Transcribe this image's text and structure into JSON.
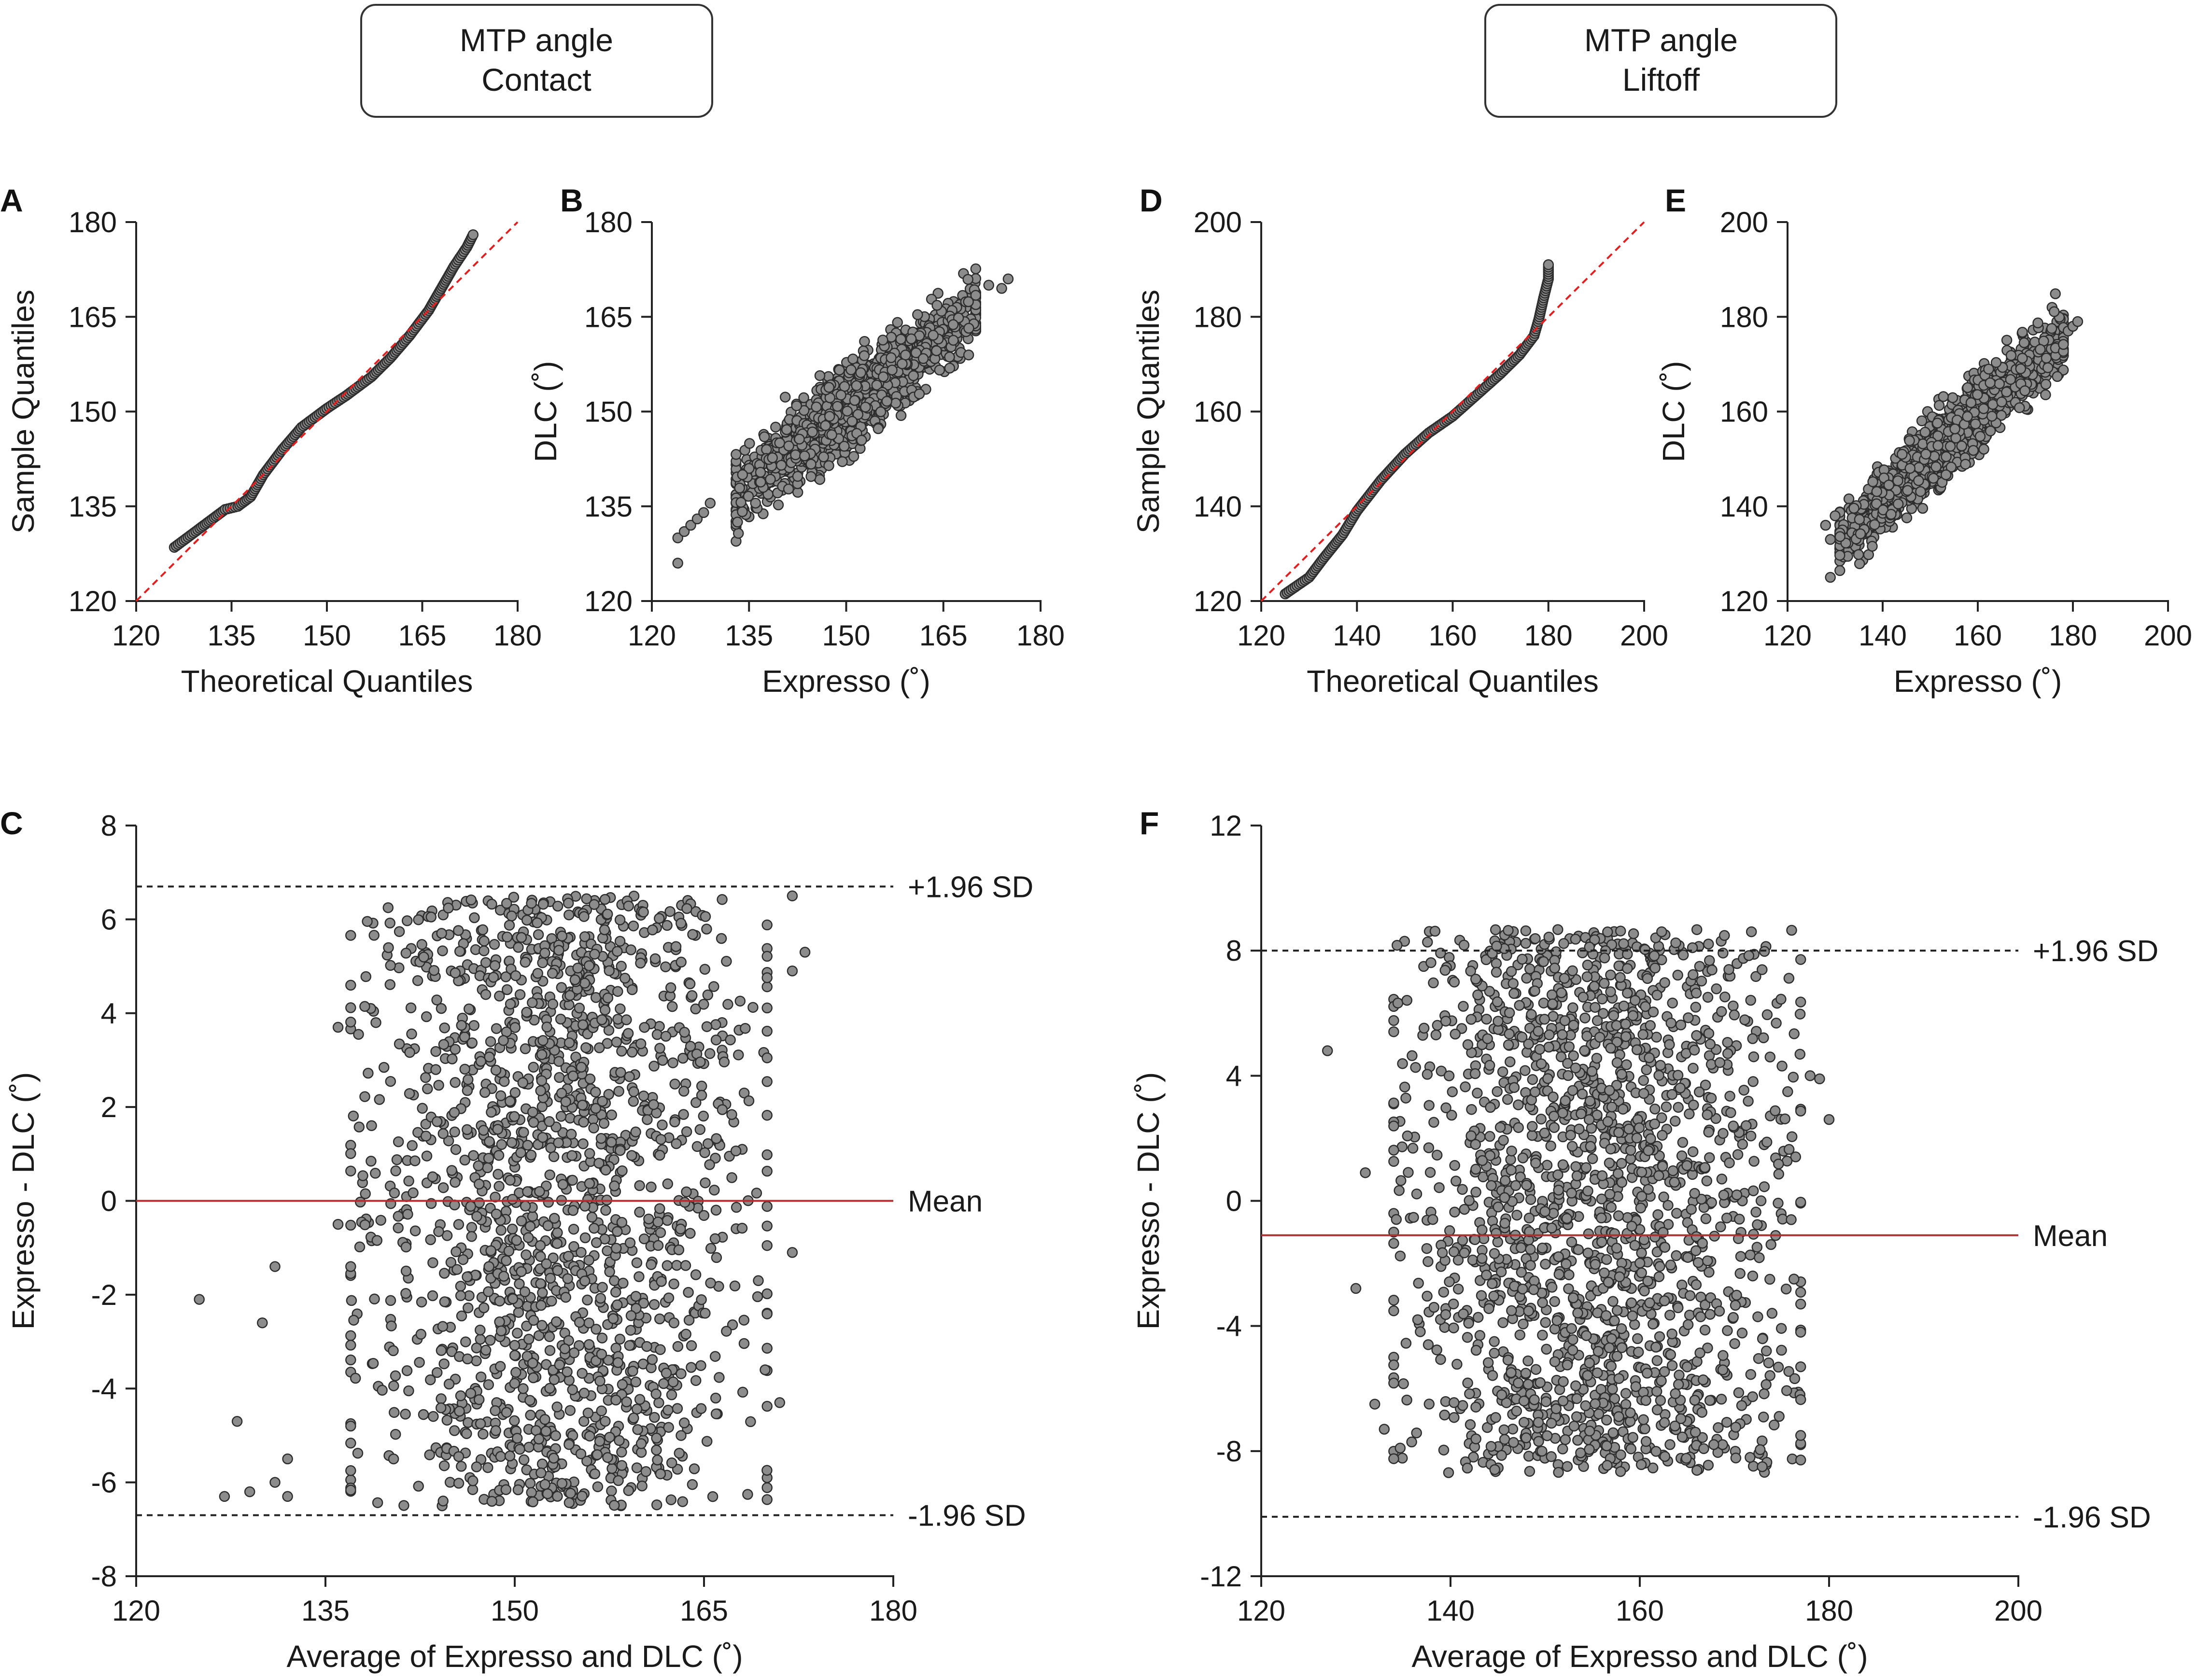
{
  "headers": [
    {
      "line1": "MTP angle",
      "line2": "Contact"
    },
    {
      "line1": "MTP angle",
      "line2": "Liftoff"
    }
  ],
  "chart_data": [
    {
      "id": "A",
      "type": "scatter",
      "subtype": "qq-plot",
      "xlabel": "Theoretical Quantiles",
      "ylabel": "Sample Quantiles",
      "xlim": [
        120,
        180
      ],
      "ylim": [
        120,
        180
      ],
      "xticks": [
        "120",
        "135",
        "150",
        "165",
        "180"
      ],
      "yticks": [
        "120",
        "135",
        "150",
        "165",
        "180"
      ],
      "reference_line": {
        "from": [
          120,
          120
        ],
        "to": [
          180,
          180
        ],
        "color": "#e02020",
        "style": "dashed"
      },
      "curve": [
        [
          126,
          128.5
        ],
        [
          130,
          131.5
        ],
        [
          132,
          133
        ],
        [
          134,
          134.5
        ],
        [
          136,
          135
        ],
        [
          138,
          136.5
        ],
        [
          140,
          140
        ],
        [
          143,
          144
        ],
        [
          146,
          147.5
        ],
        [
          150,
          150.5
        ],
        [
          153,
          152.5
        ],
        [
          157,
          155.5
        ],
        [
          160,
          158.5
        ],
        [
          163,
          162
        ],
        [
          166,
          166
        ],
        [
          168,
          169.5
        ],
        [
          170,
          173
        ],
        [
          172,
          176
        ],
        [
          173,
          178
        ]
      ]
    },
    {
      "id": "B",
      "type": "scatter",
      "xlabel": "Expresso (˚)",
      "ylabel": "DLC (˚)",
      "xlim": [
        120,
        180
      ],
      "ylim": [
        120,
        180
      ],
      "xticks": [
        "120",
        "135",
        "150",
        "165",
        "180"
      ],
      "yticks": [
        "120",
        "135",
        "150",
        "165",
        "180"
      ],
      "cloud": {
        "n": 1400,
        "x_range": [
          133,
          170
        ],
        "slope": 0.78,
        "intercept_at": 152,
        "y_at_center": 152,
        "spread": 5.5
      },
      "outliers": [
        [
          124,
          126
        ],
        [
          124,
          130
        ],
        [
          125,
          131
        ],
        [
          126,
          132
        ],
        [
          127,
          133
        ],
        [
          128,
          134
        ],
        [
          129,
          135.5
        ],
        [
          135,
          141
        ],
        [
          134,
          140
        ],
        [
          136,
          135.5
        ],
        [
          172,
          170
        ],
        [
          174,
          169.5
        ],
        [
          175,
          171
        ]
      ]
    },
    {
      "id": "C",
      "type": "scatter",
      "subtype": "bland-altman",
      "xlabel": "Average of Expresso and DLC (˚)",
      "ylabel": "Expresso - DLC (˚)",
      "xlim": [
        120,
        180
      ],
      "ylim": [
        -8,
        8
      ],
      "xticks": [
        "120",
        "135",
        "150",
        "165",
        "180"
      ],
      "yticks": [
        "-8",
        "-6",
        "-4",
        "-2",
        "0",
        "2",
        "4",
        "6",
        "8"
      ],
      "mean": 0,
      "upper_loa": 6.7,
      "lower_loa": -6.7,
      "mean_label": "Mean",
      "upper_label": "+1.96 SD",
      "lower_label": "-1.96 SD",
      "cloud": {
        "n": 1700,
        "x_range": [
          137,
          170
        ],
        "y_range": [
          -6.5,
          6.5
        ]
      },
      "outliers": [
        [
          125,
          -2.1
        ],
        [
          127,
          -6.3
        ],
        [
          128,
          -4.7
        ],
        [
          129,
          -6.2
        ],
        [
          130,
          -2.6
        ],
        [
          131,
          -1.4
        ],
        [
          131,
          -6.0
        ],
        [
          132,
          -6.3
        ],
        [
          132,
          -5.5
        ],
        [
          136,
          3.7
        ],
        [
          136,
          -0.5
        ],
        [
          137,
          -4.8
        ],
        [
          139,
          3.8
        ],
        [
          172,
          6.5
        ],
        [
          173,
          5.3
        ],
        [
          172,
          4.9
        ],
        [
          171,
          -4.3
        ],
        [
          172,
          -1.1
        ]
      ]
    },
    {
      "id": "D",
      "type": "scatter",
      "subtype": "qq-plot",
      "xlabel": "Theoretical Quantiles",
      "ylabel": "Sample Quantiles",
      "xlim": [
        120,
        200
      ],
      "ylim": [
        120,
        200
      ],
      "xticks": [
        "120",
        "140",
        "160",
        "180",
        "200"
      ],
      "yticks": [
        "120",
        "140",
        "160",
        "180",
        "200"
      ],
      "reference_line": {
        "from": [
          120,
          120
        ],
        "to": [
          200,
          200
        ],
        "color": "#e02020",
        "style": "dashed"
      },
      "curve": [
        [
          125,
          121.5
        ],
        [
          130,
          125
        ],
        [
          133,
          129
        ],
        [
          137,
          134
        ],
        [
          140,
          139
        ],
        [
          145,
          145.5
        ],
        [
          150,
          151
        ],
        [
          155,
          155.5
        ],
        [
          160,
          159
        ],
        [
          165,
          163.5
        ],
        [
          170,
          168
        ],
        [
          174,
          172
        ],
        [
          177,
          176
        ],
        [
          178,
          179.5
        ],
        [
          179,
          184
        ],
        [
          180,
          188
        ],
        [
          180,
          191
        ]
      ]
    },
    {
      "id": "E",
      "type": "scatter",
      "xlabel": "Expresso (˚)",
      "ylabel": "DLC (˚)",
      "xlim": [
        120,
        200
      ],
      "ylim": [
        120,
        200
      ],
      "xticks": [
        "120",
        "140",
        "160",
        "180",
        "200"
      ],
      "yticks": [
        "120",
        "140",
        "160",
        "180",
        "200"
      ],
      "cloud": {
        "n": 1400,
        "x_range": [
          131,
          178
        ],
        "slope": 0.92,
        "intercept_at": 155,
        "y_at_center": 155,
        "spread": 6.5
      },
      "outliers": [
        [
          129,
          125
        ],
        [
          129,
          133
        ],
        [
          128,
          136
        ],
        [
          130,
          138
        ],
        [
          179,
          177
        ],
        [
          180,
          178
        ],
        [
          181,
          179
        ]
      ]
    },
    {
      "id": "F",
      "type": "scatter",
      "subtype": "bland-altman",
      "xlabel": "Average of Expresso and DLC (˚)",
      "ylabel": "Expresso - DLC (˚)",
      "xlim": [
        120,
        200
      ],
      "ylim": [
        -12,
        12
      ],
      "xticks": [
        "120",
        "140",
        "160",
        "180",
        "200"
      ],
      "yticks": [
        "-12",
        "-8",
        "-4",
        "0",
        "4",
        "8",
        "12"
      ],
      "mean": -1.1,
      "upper_loa": 8.0,
      "lower_loa": -10.1,
      "mean_label": "Mean",
      "upper_label": "+1.96 SD",
      "lower_label": "-1.96 SD",
      "cloud": {
        "n": 1800,
        "x_range": [
          134,
          177
        ],
        "y_range": [
          -8.7,
          8.7
        ]
      },
      "outliers": [
        [
          127,
          4.8
        ],
        [
          130,
          -2.8
        ],
        [
          131,
          0.9
        ],
        [
          132,
          -6.5
        ],
        [
          133,
          -7.3
        ],
        [
          134,
          -1.0
        ],
        [
          178,
          4.0
        ],
        [
          179,
          3.9
        ],
        [
          180,
          2.6
        ],
        [
          177,
          -3.3
        ],
        [
          176,
          -0.6
        ]
      ]
    }
  ]
}
